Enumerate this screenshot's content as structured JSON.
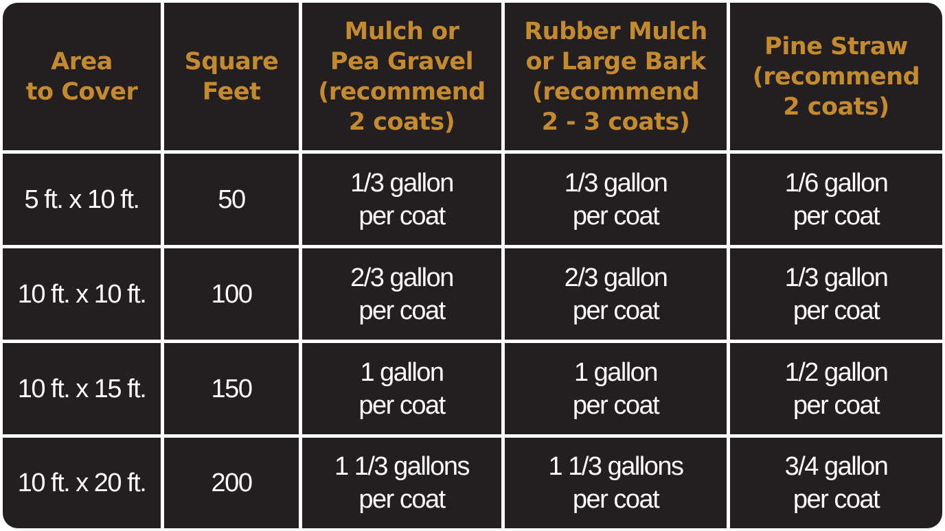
{
  "headers": [
    "Area\nto Cover",
    "Square\nFeet",
    "Mulch or\nPea Gravel\n(recommend\n2 coats)",
    "Rubber Mulch\nor Large Bark\n(recommend\n2 - 3 coats)",
    "Pine Straw\n(recommend\n2 coats)"
  ],
  "rows": [
    [
      "5 ft. x 10 ft.",
      "50",
      "1/3 gallon\nper coat",
      "1/3 gallon\nper coat",
      "1/6 gallon\nper coat"
    ],
    [
      "10 ft. x 10 ft.",
      "100",
      "2/3 gallon\nper coat",
      "2/3 gallon\nper coat",
      "1/3 gallon\nper coat"
    ],
    [
      "10 ft. x 15 ft.",
      "150",
      "1 gallon\nper coat",
      "1 gallon\nper coat",
      "1/2 gallon\nper coat"
    ],
    [
      "10 ft. x 20 ft.",
      "200",
      "1 1/3 gallons\nper coat",
      "1 1/3 gallons\nper coat",
      "3/4 gallon\nper coat"
    ]
  ],
  "colors": {
    "background": "#231f20",
    "header_text": "#c48a2f",
    "body_text": "#ffffff",
    "grid_lines": "#ffffff"
  }
}
